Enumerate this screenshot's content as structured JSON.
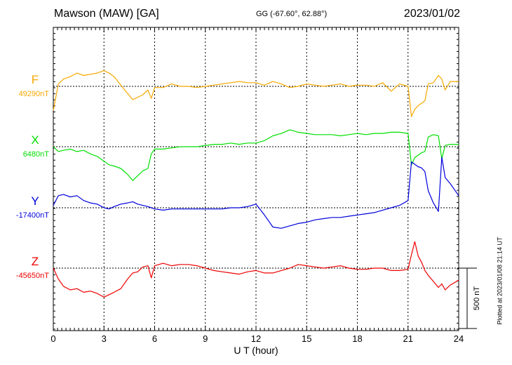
{
  "header": {
    "station": "Mawson (MAW)  [GA]",
    "coords": "GG (-67.60°,  62.88°)",
    "date": "2023/01/02"
  },
  "footer": {
    "plotted": "Plotted at 2023/01/08 21:14 UT"
  },
  "chart_data": {
    "type": "line",
    "title": "Mawson (MAW)  [GA]",
    "xlabel": "U T (hour)",
    "ylabel": "",
    "xlim": [
      0,
      24
    ],
    "xticks": [
      "0",
      "3",
      "6",
      "9",
      "12",
      "15",
      "18",
      "21",
      "24"
    ],
    "scale_bar": {
      "label": "500 nT",
      "value_nT": 500
    },
    "colors": {
      "F": "#f5a800",
      "X": "#00e000",
      "Y": "#0000dd",
      "Z": "#ee0000"
    },
    "series": [
      {
        "name": "F",
        "baseline_label": "49290nT",
        "baseline_nT": 49290,
        "x": [
          0,
          0.3,
          0.6,
          1.0,
          1.4,
          1.8,
          2.2,
          2.6,
          3.0,
          3.3,
          3.6,
          4.0,
          4.4,
          4.7,
          5.0,
          5.3,
          5.6,
          5.8,
          6.0,
          6.5,
          7.0,
          7.5,
          8.0,
          8.5,
          9.0,
          9.5,
          10.0,
          10.5,
          11.0,
          11.5,
          12.0,
          12.5,
          13.0,
          13.5,
          14.0,
          14.5,
          15.0,
          15.5,
          16.0,
          16.5,
          17.0,
          17.5,
          18.0,
          18.5,
          19.0,
          19.5,
          20.0,
          20.5,
          21.0,
          21.2,
          21.4,
          21.6,
          21.8,
          22.0,
          22.2,
          22.5,
          22.8,
          23.0,
          23.2,
          23.5,
          24.0
        ],
        "values": [
          -200,
          20,
          60,
          80,
          110,
          90,
          100,
          110,
          130,
          110,
          80,
          10,
          -60,
          -110,
          -90,
          -70,
          -30,
          -100,
          -10,
          -10,
          20,
          0,
          0,
          -10,
          0,
          10,
          20,
          30,
          40,
          30,
          30,
          10,
          40,
          20,
          -10,
          0,
          20,
          10,
          0,
          10,
          20,
          0,
          10,
          10,
          0,
          30,
          -40,
          20,
          0,
          -250,
          -190,
          -160,
          -140,
          -120,
          20,
          30,
          90,
          60,
          -30,
          40,
          40
        ]
      },
      {
        "name": "X",
        "baseline_label": "6480nT",
        "baseline_nT": 6480,
        "x": [
          0,
          0.3,
          0.6,
          1.0,
          1.4,
          1.8,
          2.2,
          2.6,
          3.0,
          3.3,
          3.6,
          4.0,
          4.4,
          4.7,
          5.0,
          5.3,
          5.6,
          5.8,
          6.0,
          6.5,
          7.0,
          7.5,
          8.0,
          8.5,
          9.0,
          9.5,
          10.0,
          10.5,
          11.0,
          11.5,
          12.0,
          12.5,
          13.0,
          13.5,
          14.0,
          14.5,
          15.0,
          15.5,
          16.0,
          16.5,
          17.0,
          17.5,
          18.0,
          18.5,
          19.0,
          19.5,
          20.0,
          20.5,
          21.0,
          21.2,
          21.4,
          21.6,
          21.8,
          22.0,
          22.2,
          22.5,
          22.8,
          23.0,
          23.2,
          23.5,
          24.0
        ],
        "values": [
          0,
          -40,
          -30,
          -20,
          -40,
          -30,
          -60,
          -80,
          -120,
          -150,
          -160,
          -180,
          -230,
          -280,
          -240,
          -200,
          -180,
          -60,
          -20,
          -20,
          -10,
          0,
          0,
          0,
          10,
          20,
          20,
          30,
          20,
          30,
          30,
          50,
          90,
          110,
          140,
          120,
          110,
          100,
          100,
          100,
          90,
          100,
          110,
          100,
          110,
          110,
          120,
          120,
          110,
          -150,
          -90,
          -70,
          -50,
          -40,
          80,
          100,
          90,
          -100,
          10,
          20,
          20
        ]
      },
      {
        "name": "Y",
        "baseline_label": "-17400nT",
        "baseline_nT": -17400,
        "x": [
          0,
          0.3,
          0.6,
          1.0,
          1.4,
          1.8,
          2.2,
          2.6,
          3.0,
          3.3,
          3.6,
          4.0,
          4.4,
          4.7,
          5.0,
          5.3,
          5.6,
          5.8,
          6.0,
          6.5,
          7.0,
          7.5,
          8.0,
          8.5,
          9.0,
          9.5,
          10.0,
          10.5,
          11.0,
          11.5,
          12.0,
          12.5,
          13.0,
          13.5,
          14.0,
          14.5,
          15.0,
          15.5,
          16.0,
          16.5,
          17.0,
          17.5,
          18.0,
          18.5,
          19.0,
          19.5,
          20.0,
          20.5,
          21.0,
          21.2,
          21.4,
          21.6,
          21.8,
          22.0,
          22.2,
          22.5,
          22.8,
          23.0,
          23.2,
          23.5,
          24.0
        ],
        "values": [
          20,
          100,
          110,
          90,
          100,
          60,
          40,
          30,
          0,
          -10,
          10,
          30,
          40,
          50,
          30,
          20,
          10,
          0,
          -10,
          -20,
          -10,
          -10,
          -10,
          -10,
          -10,
          -10,
          -10,
          0,
          0,
          10,
          30,
          -60,
          -160,
          -170,
          -150,
          -130,
          -120,
          -100,
          -90,
          -80,
          -80,
          -70,
          -60,
          -50,
          -40,
          -20,
          0,
          20,
          60,
          380,
          360,
          340,
          330,
          300,
          140,
          40,
          -30,
          420,
          250,
          200,
          100
        ]
      },
      {
        "name": "Z",
        "baseline_label": "-45650nT",
        "baseline_nT": -45650,
        "x": [
          0,
          0.3,
          0.6,
          1.0,
          1.4,
          1.8,
          2.2,
          2.6,
          3.0,
          3.3,
          3.6,
          4.0,
          4.4,
          4.7,
          5.0,
          5.3,
          5.6,
          5.8,
          6.0,
          6.5,
          7.0,
          7.5,
          8.0,
          8.5,
          9.0,
          9.5,
          10.0,
          10.5,
          11.0,
          11.5,
          12.0,
          12.5,
          13.0,
          13.5,
          14.0,
          14.5,
          15.0,
          15.5,
          16.0,
          16.5,
          17.0,
          17.5,
          18.0,
          18.5,
          19.0,
          19.5,
          20.0,
          20.5,
          21.0,
          21.2,
          21.4,
          21.6,
          21.8,
          22.0,
          22.2,
          22.5,
          22.8,
          23.0,
          23.2,
          23.5,
          24.0
        ],
        "values": [
          0,
          -90,
          -150,
          -180,
          -170,
          -200,
          -190,
          -210,
          -240,
          -220,
          -200,
          -170,
          -90,
          -40,
          -30,
          10,
          20,
          -80,
          20,
          40,
          20,
          30,
          30,
          20,
          0,
          -20,
          -30,
          -40,
          -50,
          -30,
          -20,
          -40,
          -40,
          -20,
          0,
          30,
          20,
          10,
          0,
          10,
          20,
          0,
          -10,
          -10,
          0,
          0,
          -20,
          -20,
          -10,
          110,
          220,
          100,
          50,
          -20,
          -60,
          -110,
          -160,
          -130,
          -180,
          -140,
          -100
        ]
      }
    ]
  }
}
